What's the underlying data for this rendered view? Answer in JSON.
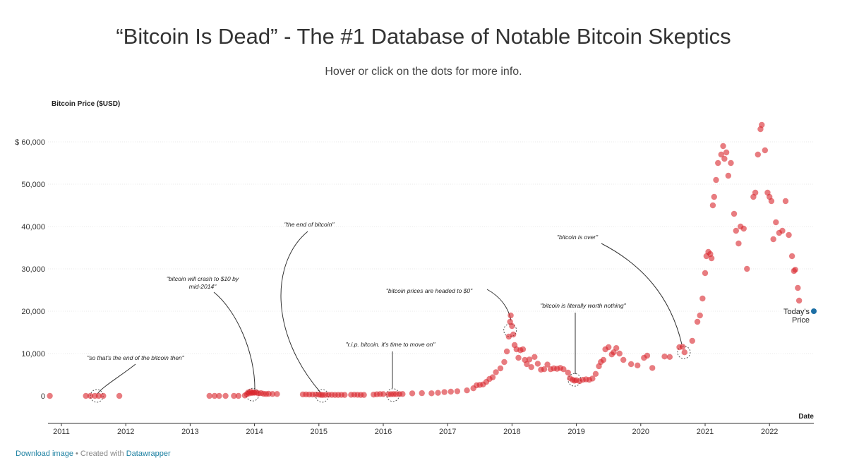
{
  "title": "“Bitcoin Is Dead” - The #1 Database of Notable Bitcoin Skeptics",
  "subtitle": "Hover or click on the dots for more info.",
  "footer": {
    "download_label": "Download image",
    "separator": " • Created with ",
    "tool_label": "Datawrapper"
  },
  "colors": {
    "dot": "#d9242b",
    "line": "#333333",
    "today_marker": "#1d6fa5"
  },
  "chart_data": {
    "type": "scatter",
    "ylabel": "Bitcoin Price ($USD)",
    "xlabel": "Date",
    "ylim": [
      0,
      66000
    ],
    "xlim": [
      2010.8,
      2022.7
    ],
    "y_ticks": [
      {
        "value": 0,
        "label": "0"
      },
      {
        "value": 10000,
        "label": "10,000"
      },
      {
        "value": 20000,
        "label": "20,000"
      },
      {
        "value": 30000,
        "label": "30,000"
      },
      {
        "value": 40000,
        "label": "40,000"
      },
      {
        "value": 50000,
        "label": "50,000"
      },
      {
        "value": 60000,
        "label": "$ 60,000"
      }
    ],
    "x_ticks": [
      {
        "value": 2011,
        "label": "2011"
      },
      {
        "value": 2012,
        "label": "2012"
      },
      {
        "value": 2013,
        "label": "2013"
      },
      {
        "value": 2014,
        "label": "2014"
      },
      {
        "value": 2015,
        "label": "2015"
      },
      {
        "value": 2016,
        "label": "2016"
      },
      {
        "value": 2017,
        "label": "2017"
      },
      {
        "value": 2018,
        "label": "2018"
      },
      {
        "value": 2019,
        "label": "2019"
      },
      {
        "value": 2020,
        "label": "2020"
      },
      {
        "value": 2021,
        "label": "2021"
      },
      {
        "value": 2022,
        "label": "2022"
      }
    ],
    "today_label": [
      "Today's",
      "Price"
    ],
    "today_point": {
      "x": 2022.67,
      "y": 20000
    },
    "annotations": [
      {
        "text": [
          "\"so that's the end of the bitcoin then\""
        ],
        "x": 2011.55,
        "y": 0
      },
      {
        "text": [
          "\"bitcoin will crash to $10 by",
          "mid-2014\""
        ],
        "x": 2013.97,
        "y": 300
      },
      {
        "text": [
          "\"the end of bitcoin\""
        ],
        "x": 2015.05,
        "y": 0
      },
      {
        "text": [
          "\"r.i.p. bitcoin. it's time to move on\""
        ],
        "x": 2016.15,
        "y": 200
      },
      {
        "text": [
          "\"bitcoin prices are headed to $0\""
        ],
        "x": 2017.97,
        "y": 15500
      },
      {
        "text": [
          "\"bitcoin is literally worth nothing\""
        ],
        "x": 2018.97,
        "y": 3800
      },
      {
        "text": [
          "\"bitcoin is over\""
        ],
        "x": 2020.67,
        "y": 10300
      }
    ],
    "points": [
      [
        2010.82,
        0
      ],
      [
        2011.38,
        0
      ],
      [
        2011.45,
        0
      ],
      [
        2011.52,
        0
      ],
      [
        2011.58,
        0
      ],
      [
        2011.65,
        0
      ],
      [
        2011.9,
        0
      ],
      [
        2013.3,
        0
      ],
      [
        2013.38,
        0
      ],
      [
        2013.45,
        0
      ],
      [
        2013.55,
        0
      ],
      [
        2013.68,
        0
      ],
      [
        2013.75,
        0
      ],
      [
        2013.85,
        100
      ],
      [
        2013.88,
        400
      ],
      [
        2013.9,
        800
      ],
      [
        2013.92,
        600
      ],
      [
        2013.94,
        1000
      ],
      [
        2013.96,
        700
      ],
      [
        2013.98,
        800
      ],
      [
        2014.0,
        750
      ],
      [
        2014.03,
        800
      ],
      [
        2014.06,
        600
      ],
      [
        2014.1,
        650
      ],
      [
        2014.14,
        500
      ],
      [
        2014.18,
        450
      ],
      [
        2014.22,
        500
      ],
      [
        2014.28,
        450
      ],
      [
        2014.35,
        450
      ],
      [
        2014.75,
        350
      ],
      [
        2014.8,
        350
      ],
      [
        2014.85,
        330
      ],
      [
        2014.9,
        320
      ],
      [
        2014.95,
        310
      ],
      [
        2015.0,
        300
      ],
      [
        2015.03,
        250
      ],
      [
        2015.06,
        220
      ],
      [
        2015.1,
        240
      ],
      [
        2015.15,
        260
      ],
      [
        2015.2,
        250
      ],
      [
        2015.25,
        230
      ],
      [
        2015.3,
        230
      ],
      [
        2015.35,
        240
      ],
      [
        2015.4,
        230
      ],
      [
        2015.5,
        260
      ],
      [
        2015.55,
        280
      ],
      [
        2015.6,
        260
      ],
      [
        2015.65,
        230
      ],
      [
        2015.7,
        230
      ],
      [
        2015.85,
        310
      ],
      [
        2015.9,
        380
      ],
      [
        2015.95,
        430
      ],
      [
        2016.0,
        430
      ],
      [
        2016.08,
        380
      ],
      [
        2016.12,
        400
      ],
      [
        2016.16,
        420
      ],
      [
        2016.2,
        420
      ],
      [
        2016.25,
        430
      ],
      [
        2016.3,
        450
      ],
      [
        2016.45,
        600
      ],
      [
        2016.6,
        650
      ],
      [
        2016.75,
        620
      ],
      [
        2016.85,
        720
      ],
      [
        2016.95,
        900
      ],
      [
        2017.05,
        1000
      ],
      [
        2017.15,
        1100
      ],
      [
        2017.3,
        1300
      ],
      [
        2017.4,
        1800
      ],
      [
        2017.45,
        2500
      ],
      [
        2017.5,
        2600
      ],
      [
        2017.55,
        2700
      ],
      [
        2017.6,
        3300
      ],
      [
        2017.65,
        4000
      ],
      [
        2017.7,
        4400
      ],
      [
        2017.75,
        5600
      ],
      [
        2017.82,
        6500
      ],
      [
        2017.88,
        8000
      ],
      [
        2017.92,
        10500
      ],
      [
        2017.95,
        14000
      ],
      [
        2017.97,
        17500
      ],
      [
        2017.98,
        19000
      ],
      [
        2018.0,
        16500
      ],
      [
        2018.02,
        14500
      ],
      [
        2018.04,
        12000
      ],
      [
        2018.07,
        11000
      ],
      [
        2018.1,
        9000
      ],
      [
        2018.13,
        10800
      ],
      [
        2018.17,
        11000
      ],
      [
        2018.2,
        8500
      ],
      [
        2018.23,
        7500
      ],
      [
        2018.27,
        8600
      ],
      [
        2018.3,
        6800
      ],
      [
        2018.35,
        9200
      ],
      [
        2018.4,
        7600
      ],
      [
        2018.45,
        6200
      ],
      [
        2018.5,
        6300
      ],
      [
        2018.55,
        7400
      ],
      [
        2018.6,
        6300
      ],
      [
        2018.65,
        6500
      ],
      [
        2018.7,
        6400
      ],
      [
        2018.75,
        6600
      ],
      [
        2018.8,
        6300
      ],
      [
        2018.87,
        5500
      ],
      [
        2018.9,
        4200
      ],
      [
        2018.94,
        3800
      ],
      [
        2018.97,
        3600
      ],
      [
        2019.0,
        3700
      ],
      [
        2019.05,
        3500
      ],
      [
        2019.1,
        3800
      ],
      [
        2019.15,
        3900
      ],
      [
        2019.2,
        3800
      ],
      [
        2019.25,
        4100
      ],
      [
        2019.3,
        5200
      ],
      [
        2019.35,
        7000
      ],
      [
        2019.38,
        8000
      ],
      [
        2019.42,
        8500
      ],
      [
        2019.45,
        11000
      ],
      [
        2019.5,
        11500
      ],
      [
        2019.55,
        9800
      ],
      [
        2019.58,
        10300
      ],
      [
        2019.62,
        11300
      ],
      [
        2019.67,
        10000
      ],
      [
        2019.73,
        8500
      ],
      [
        2019.85,
        7500
      ],
      [
        2019.95,
        7200
      ],
      [
        2020.05,
        9000
      ],
      [
        2020.1,
        9500
      ],
      [
        2020.18,
        6600
      ],
      [
        2020.37,
        9300
      ],
      [
        2020.45,
        9200
      ],
      [
        2020.6,
        11500
      ],
      [
        2020.65,
        11600
      ],
      [
        2020.68,
        10300
      ],
      [
        2020.8,
        13000
      ],
      [
        2020.88,
        17500
      ],
      [
        2020.92,
        19000
      ],
      [
        2020.96,
        23000
      ],
      [
        2021.0,
        29000
      ],
      [
        2021.02,
        33000
      ],
      [
        2021.05,
        34000
      ],
      [
        2021.08,
        33500
      ],
      [
        2021.1,
        32500
      ],
      [
        2021.12,
        45000
      ],
      [
        2021.14,
        47000
      ],
      [
        2021.17,
        51000
      ],
      [
        2021.2,
        55000
      ],
      [
        2021.25,
        57000
      ],
      [
        2021.28,
        59000
      ],
      [
        2021.3,
        56000
      ],
      [
        2021.33,
        57500
      ],
      [
        2021.36,
        52000
      ],
      [
        2021.4,
        55000
      ],
      [
        2021.45,
        43000
      ],
      [
        2021.48,
        39000
      ],
      [
        2021.52,
        36000
      ],
      [
        2021.55,
        40000
      ],
      [
        2021.6,
        39500
      ],
      [
        2021.65,
        30000
      ],
      [
        2021.75,
        47000
      ],
      [
        2021.78,
        48000
      ],
      [
        2021.82,
        57000
      ],
      [
        2021.86,
        63000
      ],
      [
        2021.88,
        64000
      ],
      [
        2021.93,
        58000
      ],
      [
        2021.97,
        48000
      ],
      [
        2022.0,
        47000
      ],
      [
        2022.03,
        46000
      ],
      [
        2022.06,
        37000
      ],
      [
        2022.1,
        41000
      ],
      [
        2022.15,
        38500
      ],
      [
        2022.2,
        39000
      ],
      [
        2022.25,
        46000
      ],
      [
        2022.3,
        38000
      ],
      [
        2022.35,
        33000
      ],
      [
        2022.38,
        29500
      ],
      [
        2022.4,
        29800
      ],
      [
        2022.44,
        25500
      ],
      [
        2022.46,
        22500
      ]
    ]
  }
}
